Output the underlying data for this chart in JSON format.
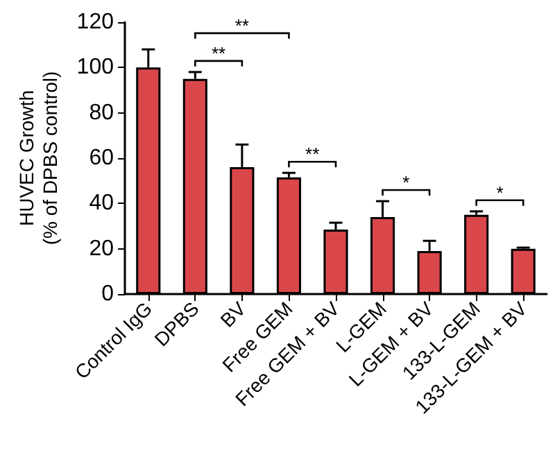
{
  "chart_data": {
    "type": "bar",
    "ylabel": "HUVEC Growth\n(% of DPBS control)",
    "categories": [
      "Control IgG",
      "DPBS",
      "BV",
      "Free GEM",
      "Free GEM + BV",
      "L-GEM",
      "L-GEM + BV",
      "133-L-GEM",
      "133-L-GEM + BV"
    ],
    "values": [
      100,
      95,
      56,
      51.5,
      28.5,
      34,
      19,
      35,
      20
    ],
    "errors": [
      [
        100,
        108
      ],
      [
        95,
        98
      ],
      [
        56,
        66
      ],
      [
        51.5,
        53.5
      ],
      [
        28.5,
        31.5
      ],
      [
        34,
        41
      ],
      [
        19,
        23.5
      ],
      [
        35,
        36.5
      ],
      [
        20,
        20.5
      ]
    ],
    "color": "#d9474a",
    "ylim": [
      0,
      120
    ],
    "yticks": [
      0,
      20,
      40,
      60,
      80,
      100,
      120
    ],
    "annotations": [
      "**",
      "**",
      "**",
      "*",
      "*"
    ],
    "grid": false
  }
}
